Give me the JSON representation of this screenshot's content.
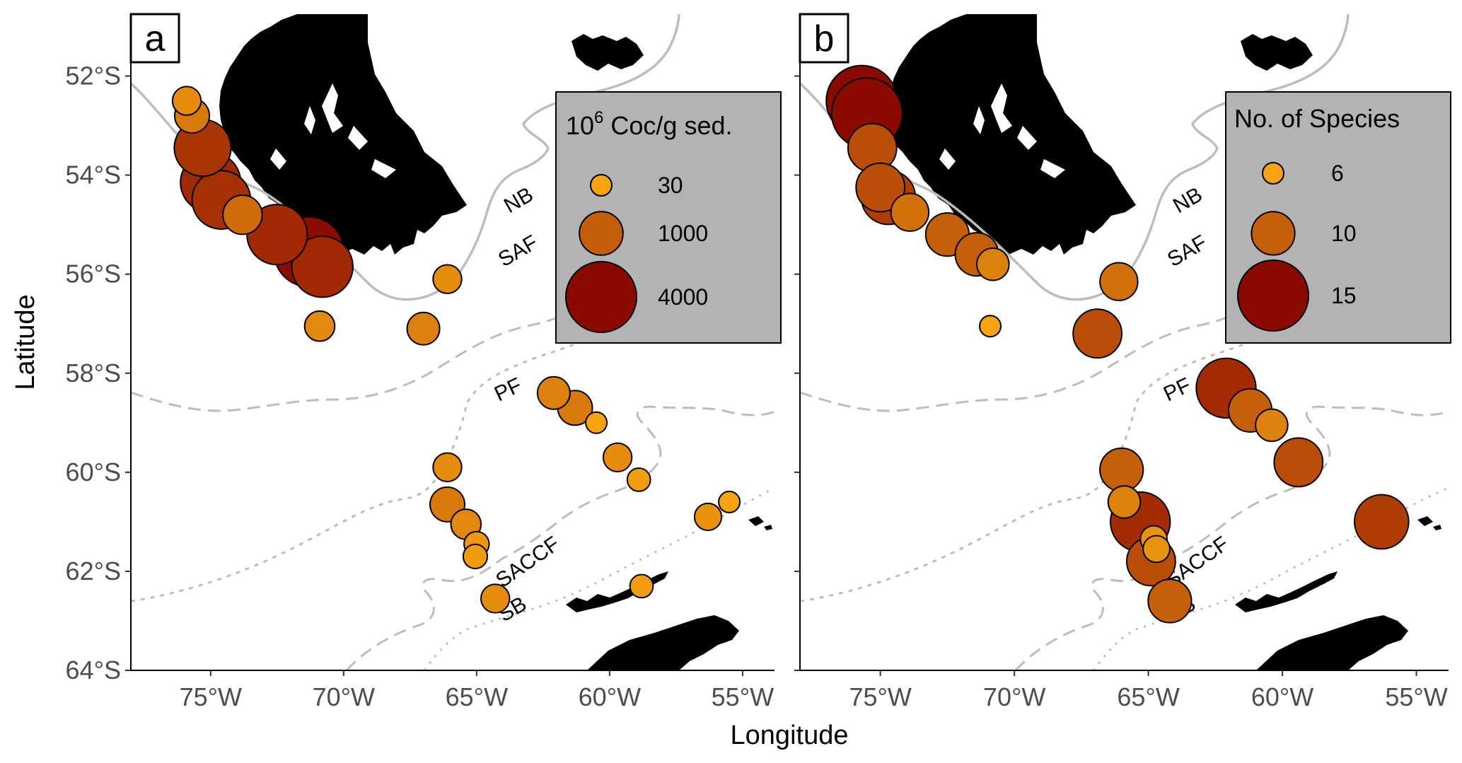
{
  "figure": {
    "xlabel": "Longitude",
    "ylabel": "Latitude",
    "x_ticks": [
      {
        "value": -75,
        "label": "75°W"
      },
      {
        "value": -70,
        "label": "70°W"
      },
      {
        "value": -65,
        "label": "65°W"
      },
      {
        "value": -60,
        "label": "60°W"
      },
      {
        "value": -55,
        "label": "55°W"
      }
    ],
    "y_ticks": [
      {
        "value": -52,
        "label": "52°S"
      },
      {
        "value": -54,
        "label": "54°S"
      },
      {
        "value": -56,
        "label": "56°S"
      },
      {
        "value": -58,
        "label": "58°S"
      },
      {
        "value": -60,
        "label": "60°S"
      },
      {
        "value": -62,
        "label": "62°S"
      },
      {
        "value": -64,
        "label": "64°S"
      }
    ],
    "xlim": [
      -78,
      -53.8
    ],
    "ylim": [
      -64,
      -50.75
    ],
    "front_labels": [
      "NB",
      "SAF",
      "PF",
      "SACCF",
      "SB"
    ],
    "colors": {
      "land": "#000000",
      "front": "#bdbdbd",
      "legend_bg": "#b3b3b3",
      "low": "#f5a311",
      "high": "#8b0a00"
    }
  },
  "chart_data": [
    {
      "type": "scatter",
      "panel": "a",
      "legend_title": "10",
      "legend_title_sup": "6",
      "legend_title_rest": " Coc/g sed.",
      "legend": [
        {
          "value": 30,
          "label": "30"
        },
        {
          "value": 1000,
          "label": "1000"
        },
        {
          "value": 4000,
          "label": "4000"
        }
      ],
      "size_range": [
        30,
        4000
      ],
      "points": [
        {
          "lon": -75.9,
          "lat": -52.5,
          "value": 200
        },
        {
          "lon": -75.7,
          "lat": -52.8,
          "value": 450
        },
        {
          "lon": -75.3,
          "lat": -53.45,
          "value": 2200
        },
        {
          "lon": -75.0,
          "lat": -54.15,
          "value": 2600
        },
        {
          "lon": -74.6,
          "lat": -54.5,
          "value": 2400
        },
        {
          "lon": -73.8,
          "lat": -54.8,
          "value": 700
        },
        {
          "lon": -72.5,
          "lat": -55.2,
          "value": 2600
        },
        {
          "lon": -71.3,
          "lat": -55.55,
          "value": 3900
        },
        {
          "lon": -70.8,
          "lat": -55.85,
          "value": 2700
        },
        {
          "lon": -70.9,
          "lat": -57.05,
          "value": 250
        },
        {
          "lon": -67.0,
          "lat": -57.1,
          "value": 350
        },
        {
          "lon": -66.1,
          "lat": -56.1,
          "value": 200
        },
        {
          "lon": -62.1,
          "lat": -58.4,
          "value": 350
        },
        {
          "lon": -61.3,
          "lat": -58.7,
          "value": 450
        },
        {
          "lon": -60.5,
          "lat": -59.0,
          "value": 30
        },
        {
          "lon": -59.7,
          "lat": -59.7,
          "value": 200
        },
        {
          "lon": -58.9,
          "lat": -60.15,
          "value": 60
        },
        {
          "lon": -56.3,
          "lat": -60.9,
          "value": 150
        },
        {
          "lon": -55.5,
          "lat": -60.6,
          "value": 30
        },
        {
          "lon": -66.1,
          "lat": -59.9,
          "value": 200
        },
        {
          "lon": -66.1,
          "lat": -60.65,
          "value": 450
        },
        {
          "lon": -65.4,
          "lat": -61.05,
          "value": 250
        },
        {
          "lon": -65.0,
          "lat": -61.45,
          "value": 100
        },
        {
          "lon": -65.05,
          "lat": -61.7,
          "value": 80
        },
        {
          "lon": -64.3,
          "lat": -62.55,
          "value": 200
        },
        {
          "lon": -58.8,
          "lat": -62.3,
          "value": 60
        }
      ]
    },
    {
      "type": "scatter",
      "panel": "b",
      "legend_title": "No. of Species",
      "legend": [
        {
          "value": 6,
          "label": "6"
        },
        {
          "value": 10,
          "label": "10"
        },
        {
          "value": 15,
          "label": "15"
        }
      ],
      "size_range": [
        6,
        15
      ],
      "points": [
        {
          "lon": -75.7,
          "lat": -52.5,
          "value": 15
        },
        {
          "lon": -75.5,
          "lat": -52.75,
          "value": 15
        },
        {
          "lon": -75.3,
          "lat": -53.45,
          "value": 11
        },
        {
          "lon": -75.0,
          "lat": -54.25,
          "value": 11
        },
        {
          "lon": -74.7,
          "lat": -54.45,
          "value": 12
        },
        {
          "lon": -73.9,
          "lat": -54.75,
          "value": 9
        },
        {
          "lon": -72.5,
          "lat": -55.2,
          "value": 10
        },
        {
          "lon": -71.4,
          "lat": -55.6,
          "value": 10
        },
        {
          "lon": -70.8,
          "lat": -55.8,
          "value": 8
        },
        {
          "lon": -70.9,
          "lat": -57.05,
          "value": 6
        },
        {
          "lon": -66.1,
          "lat": -56.15,
          "value": 9
        },
        {
          "lon": -66.9,
          "lat": -57.2,
          "value": 11
        },
        {
          "lon": -62.1,
          "lat": -58.3,
          "value": 13
        },
        {
          "lon": -61.2,
          "lat": -58.75,
          "value": 10
        },
        {
          "lon": -60.4,
          "lat": -59.05,
          "value": 8
        },
        {
          "lon": -59.4,
          "lat": -59.8,
          "value": 11
        },
        {
          "lon": -56.3,
          "lat": -61.0,
          "value": 12
        },
        {
          "lon": -66.0,
          "lat": -59.95,
          "value": 10
        },
        {
          "lon": -65.9,
          "lat": -60.6,
          "value": 8
        },
        {
          "lon": -65.3,
          "lat": -61.0,
          "value": 13
        },
        {
          "lon": -64.8,
          "lat": -61.35,
          "value": 7
        },
        {
          "lon": -64.7,
          "lat": -61.55,
          "value": 7
        },
        {
          "lon": -64.9,
          "lat": -61.8,
          "value": 11
        },
        {
          "lon": -64.2,
          "lat": -62.6,
          "value": 10
        }
      ]
    }
  ]
}
